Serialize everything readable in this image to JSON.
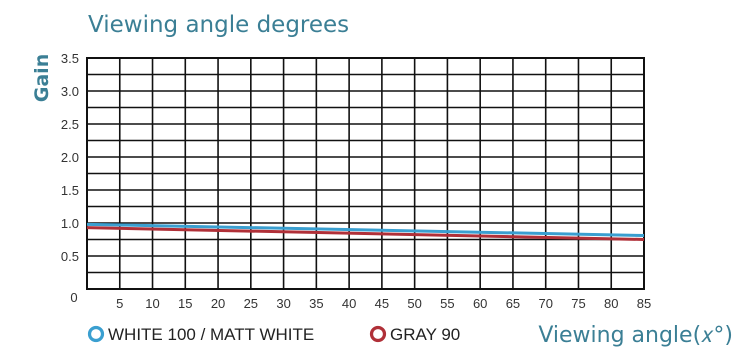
{
  "chart_data": {
    "type": "line",
    "title": "Viewing angle degrees",
    "ylabel": "Gain",
    "xlabel": "Viewing  angle(𝑥°)",
    "x_ticks": [
      "0",
      "5",
      "10",
      "15",
      "20",
      "25",
      "30",
      "35",
      "40",
      "45",
      "50",
      "55",
      "60",
      "65",
      "70",
      "75",
      "80",
      "85"
    ],
    "y_ticks": [
      "0.5",
      "1.0",
      "1.5",
      "2.0",
      "2.5",
      "3.0",
      "3.5"
    ],
    "y_tick_values": [
      0.5,
      1.0,
      1.5,
      2.0,
      2.5,
      3.0,
      3.5
    ],
    "origin_label": "0",
    "xlim": [
      0,
      85
    ],
    "ylim": [
      0,
      3.5
    ],
    "grid": true,
    "legend_position": "bottom-left",
    "series": [
      {
        "name": "WHITE 100 / MATT WHITE",
        "color": "#3a9fd0",
        "x": [
          0,
          85
        ],
        "y": [
          0.98,
          0.81
        ]
      },
      {
        "name": "GRAY 90",
        "color": "#b03038",
        "x": [
          0,
          85
        ],
        "y": [
          0.93,
          0.75
        ]
      }
    ]
  }
}
